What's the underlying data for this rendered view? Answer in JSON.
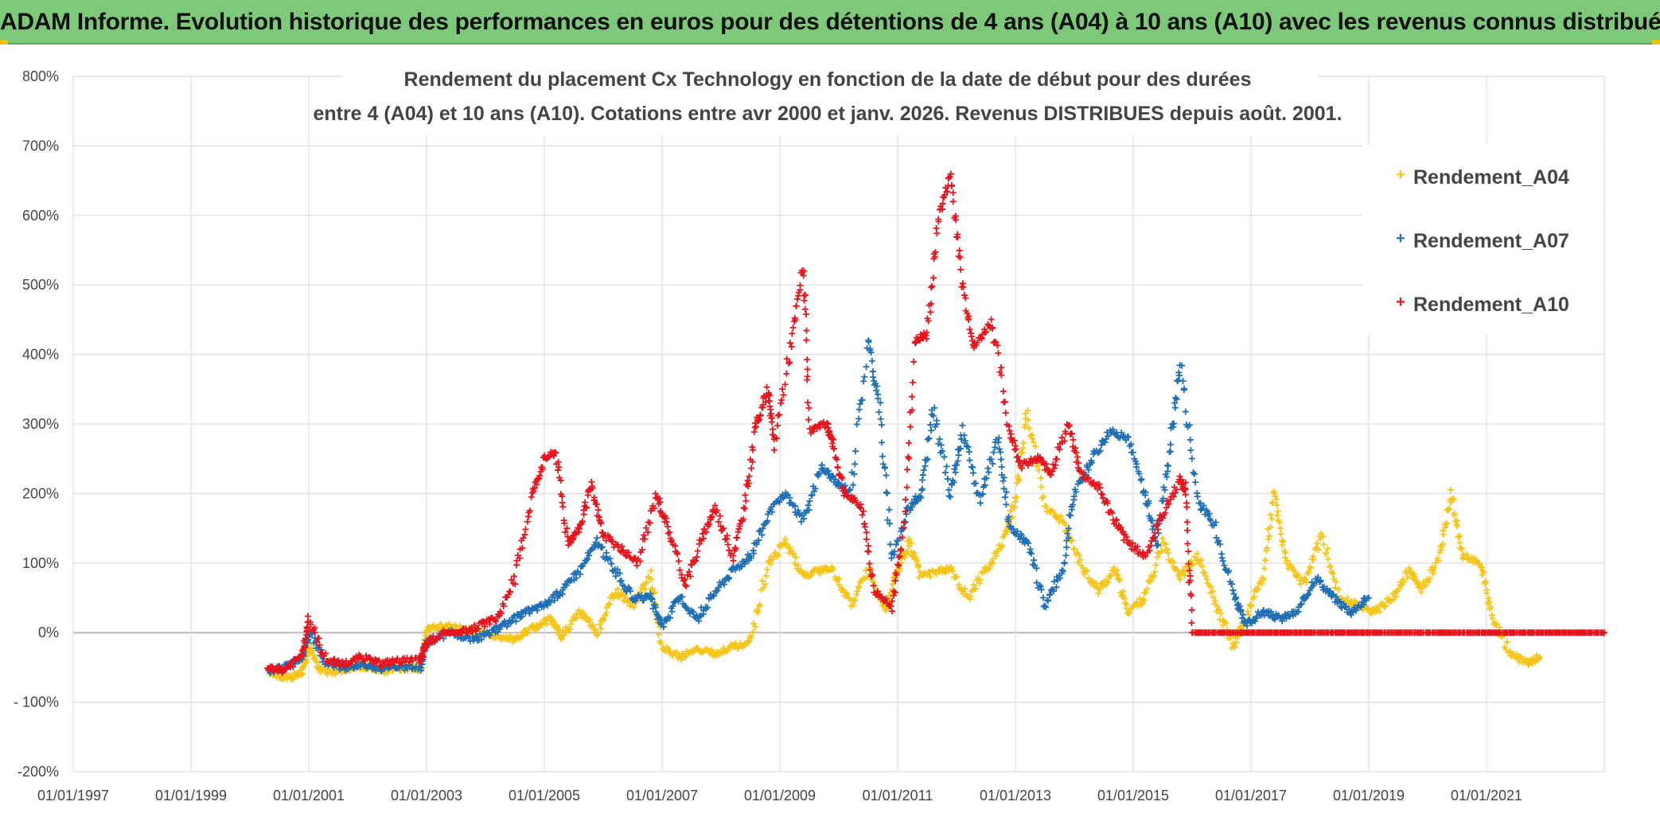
{
  "header": {
    "title": "ADAM Informe. Evolution historique des performances en euros pour des détentions de 4 ans (A04) à 10 ans (A10) avec les revenus connus distribués"
  },
  "chart_data": {
    "type": "scatter",
    "title_line1": "Rendement du placement Cx Technology  en fonction de la date de début pour des durées",
    "title_line2": "entre 4 (A04) et 10 ans (A10). Cotations entre avr 2000 et janv. 2026. Revenus DISTRIBUES depuis août. 2001.",
    "xlabel": "",
    "ylabel": "",
    "x_ticks": [
      "01/01/1997",
      "01/01/1999",
      "01/01/2001",
      "01/01/2003",
      "01/01/2005",
      "01/01/2007",
      "01/01/2009",
      "01/01/2011",
      "01/01/2013",
      "01/01/2015",
      "01/01/2017",
      "01/01/2019",
      "01/01/2021"
    ],
    "xlim": [
      1997.0,
      2023.0
    ],
    "y_ticks": [
      "-200%",
      "- 100%",
      "0%",
      "100%",
      "200%",
      "300%",
      "400%",
      "500%",
      "600%",
      "700%",
      "800%"
    ],
    "ylim": [
      -200,
      800
    ],
    "grid": true,
    "legend_position": "top-right",
    "series": [
      {
        "name": "Rendement_A04",
        "color": "#f5c518",
        "marker": "+",
        "points": [
          [
            2000.3,
            -55
          ],
          [
            2000.5,
            -62
          ],
          [
            2000.7,
            -65
          ],
          [
            2000.9,
            -55
          ],
          [
            2001.0,
            -20
          ],
          [
            2001.2,
            -55
          ],
          [
            2001.5,
            -58
          ],
          [
            2001.8,
            -48
          ],
          [
            2002.0,
            -50
          ],
          [
            2002.3,
            -55
          ],
          [
            2002.6,
            -50
          ],
          [
            2002.9,
            -52
          ],
          [
            2003.0,
            5
          ],
          [
            2003.3,
            10
          ],
          [
            2003.6,
            5
          ],
          [
            2003.9,
            0
          ],
          [
            2004.2,
            -5
          ],
          [
            2004.5,
            -10
          ],
          [
            2004.8,
            5
          ],
          [
            2005.1,
            20
          ],
          [
            2005.3,
            -5
          ],
          [
            2005.6,
            30
          ],
          [
            2005.9,
            0
          ],
          [
            2006.2,
            60
          ],
          [
            2006.5,
            40
          ],
          [
            2006.8,
            80
          ],
          [
            2007.0,
            -20
          ],
          [
            2007.3,
            -35
          ],
          [
            2007.6,
            -25
          ],
          [
            2007.9,
            -30
          ],
          [
            2008.2,
            -20
          ],
          [
            2008.5,
            -15
          ],
          [
            2008.8,
            100
          ],
          [
            2009.1,
            130
          ],
          [
            2009.4,
            80
          ],
          [
            2009.7,
            90
          ],
          [
            2009.9,
            90
          ],
          [
            2010.2,
            40
          ],
          [
            2010.5,
            90
          ],
          [
            2010.8,
            30
          ],
          [
            2011.0,
            90
          ],
          [
            2011.2,
            130
          ],
          [
            2011.4,
            80
          ],
          [
            2011.7,
            90
          ],
          [
            2011.9,
            90
          ],
          [
            2012.2,
            50
          ],
          [
            2012.5,
            90
          ],
          [
            2012.8,
            130
          ],
          [
            2013.0,
            190
          ],
          [
            2013.2,
            320
          ],
          [
            2013.5,
            180
          ],
          [
            2013.8,
            160
          ],
          [
            2014.1,
            100
          ],
          [
            2014.4,
            60
          ],
          [
            2014.7,
            90
          ],
          [
            2014.9,
            30
          ],
          [
            2015.2,
            50
          ],
          [
            2015.5,
            130
          ],
          [
            2015.8,
            80
          ],
          [
            2016.1,
            110
          ],
          [
            2016.4,
            40
          ],
          [
            2016.7,
            -20
          ],
          [
            2016.9,
            20
          ],
          [
            2017.2,
            80
          ],
          [
            2017.4,
            200
          ],
          [
            2017.6,
            100
          ],
          [
            2017.9,
            70
          ],
          [
            2018.2,
            140
          ],
          [
            2018.5,
            50
          ],
          [
            2018.8,
            40
          ],
          [
            2019.1,
            30
          ],
          [
            2019.4,
            50
          ],
          [
            2019.7,
            90
          ],
          [
            2019.9,
            60
          ],
          [
            2020.2,
            110
          ],
          [
            2020.4,
            200
          ],
          [
            2020.6,
            110
          ],
          [
            2020.9,
            100
          ],
          [
            2021.1,
            20
          ],
          [
            2021.4,
            -30
          ],
          [
            2021.7,
            -45
          ],
          [
            2021.9,
            -35
          ]
        ]
      },
      {
        "name": "Rendement_A07",
        "color": "#1f6fb5",
        "marker": "+",
        "points": [
          [
            2000.3,
            -55
          ],
          [
            2000.6,
            -50
          ],
          [
            2000.9,
            -35
          ],
          [
            2001.0,
            0
          ],
          [
            2001.3,
            -45
          ],
          [
            2001.6,
            -50
          ],
          [
            2001.9,
            -45
          ],
          [
            2002.2,
            -52
          ],
          [
            2002.5,
            -50
          ],
          [
            2002.9,
            -50
          ],
          [
            2003.0,
            -15
          ],
          [
            2003.4,
            0
          ],
          [
            2003.8,
            -10
          ],
          [
            2004.1,
            0
          ],
          [
            2004.4,
            15
          ],
          [
            2004.7,
            30
          ],
          [
            2005.0,
            40
          ],
          [
            2005.3,
            60
          ],
          [
            2005.6,
            90
          ],
          [
            2005.9,
            130
          ],
          [
            2006.2,
            90
          ],
          [
            2006.5,
            50
          ],
          [
            2006.8,
            50
          ],
          [
            2007.0,
            10
          ],
          [
            2007.3,
            50
          ],
          [
            2007.6,
            20
          ],
          [
            2007.9,
            60
          ],
          [
            2008.2,
            90
          ],
          [
            2008.5,
            110
          ],
          [
            2008.8,
            170
          ],
          [
            2009.1,
            200
          ],
          [
            2009.4,
            160
          ],
          [
            2009.7,
            240
          ],
          [
            2009.9,
            220
          ],
          [
            2010.2,
            200
          ],
          [
            2010.5,
            420
          ],
          [
            2010.7,
            320
          ],
          [
            2010.9,
            110
          ],
          [
            2011.2,
            180
          ],
          [
            2011.4,
            200
          ],
          [
            2011.6,
            320
          ],
          [
            2011.9,
            200
          ],
          [
            2012.1,
            290
          ],
          [
            2012.4,
            190
          ],
          [
            2012.7,
            280
          ],
          [
            2012.9,
            150
          ],
          [
            2013.2,
            130
          ],
          [
            2013.5,
            40
          ],
          [
            2013.8,
            90
          ],
          [
            2014.0,
            200
          ],
          [
            2014.3,
            250
          ],
          [
            2014.6,
            290
          ],
          [
            2014.9,
            280
          ],
          [
            2015.2,
            200
          ],
          [
            2015.4,
            130
          ],
          [
            2015.6,
            250
          ],
          [
            2015.8,
            390
          ],
          [
            2016.1,
            190
          ],
          [
            2016.4,
            150
          ],
          [
            2016.7,
            60
          ],
          [
            2016.9,
            10
          ],
          [
            2017.2,
            30
          ],
          [
            2017.5,
            20
          ],
          [
            2017.8,
            30
          ],
          [
            2018.1,
            80
          ],
          [
            2018.4,
            50
          ],
          [
            2018.7,
            30
          ],
          [
            2019.0,
            50
          ]
        ]
      },
      {
        "name": "Rendement_A10",
        "color": "#e8141c",
        "marker": "+",
        "points": [
          [
            2000.3,
            -50
          ],
          [
            2000.6,
            -55
          ],
          [
            2000.9,
            -30
          ],
          [
            2001.0,
            20
          ],
          [
            2001.3,
            -40
          ],
          [
            2001.6,
            -45
          ],
          [
            2001.9,
            -35
          ],
          [
            2002.2,
            -45
          ],
          [
            2002.5,
            -40
          ],
          [
            2002.9,
            -40
          ],
          [
            2003.0,
            -15
          ],
          [
            2003.3,
            0
          ],
          [
            2003.6,
            0
          ],
          [
            2003.9,
            10
          ],
          [
            2004.2,
            20
          ],
          [
            2004.5,
            80
          ],
          [
            2004.8,
            200
          ],
          [
            2005.0,
            250
          ],
          [
            2005.2,
            260
          ],
          [
            2005.4,
            130
          ],
          [
            2005.6,
            150
          ],
          [
            2005.8,
            210
          ],
          [
            2006.0,
            140
          ],
          [
            2006.3,
            120
          ],
          [
            2006.6,
            100
          ],
          [
            2006.9,
            200
          ],
          [
            2007.1,
            150
          ],
          [
            2007.4,
            70
          ],
          [
            2007.7,
            140
          ],
          [
            2007.9,
            180
          ],
          [
            2008.2,
            110
          ],
          [
            2008.4,
            180
          ],
          [
            2008.6,
            300
          ],
          [
            2008.8,
            350
          ],
          [
            2008.9,
            270
          ],
          [
            2009.2,
            420
          ],
          [
            2009.4,
            530
          ],
          [
            2009.5,
            290
          ],
          [
            2009.8,
            300
          ],
          [
            2009.9,
            270
          ],
          [
            2010.1,
            200
          ],
          [
            2010.4,
            180
          ],
          [
            2010.6,
            60
          ],
          [
            2010.9,
            40
          ],
          [
            2011.1,
            140
          ],
          [
            2011.3,
            420
          ],
          [
            2011.5,
            430
          ],
          [
            2011.7,
            600
          ],
          [
            2011.9,
            660
          ],
          [
            2012.1,
            500
          ],
          [
            2012.3,
            410
          ],
          [
            2012.6,
            450
          ],
          [
            2012.9,
            290
          ],
          [
            2013.1,
            240
          ],
          [
            2013.4,
            250
          ],
          [
            2013.6,
            230
          ],
          [
            2013.9,
            300
          ],
          [
            2014.1,
            230
          ],
          [
            2014.4,
            210
          ],
          [
            2014.7,
            160
          ],
          [
            2014.9,
            130
          ],
          [
            2015.2,
            110
          ],
          [
            2015.5,
            170
          ],
          [
            2015.8,
            220
          ],
          [
            2015.9,
            200
          ],
          [
            2016.0,
            0
          ],
          [
            2017.0,
            0
          ],
          [
            2018.0,
            0
          ],
          [
            2019.0,
            0
          ],
          [
            2020.0,
            0
          ],
          [
            2021.0,
            0
          ],
          [
            2022.0,
            0
          ],
          [
            2023.0,
            0
          ]
        ]
      }
    ]
  }
}
